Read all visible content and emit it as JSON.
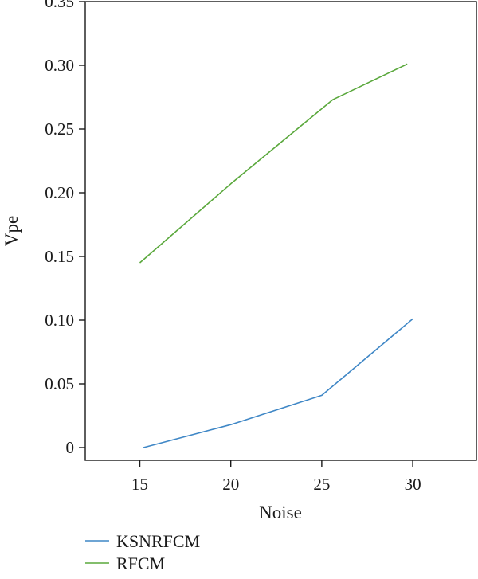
{
  "chart_data": {
    "type": "line",
    "xlabel": "Noise",
    "ylabel": "Vpe",
    "xlim": [
      12,
      33.5
    ],
    "ylim": [
      -0.01,
      0.35
    ],
    "xticks": [
      15,
      20,
      25,
      30
    ],
    "xtick_labels": [
      "15",
      "20",
      "25",
      "30"
    ],
    "yticks": [
      0,
      0.05,
      0.1,
      0.15,
      0.2,
      0.25,
      0.3,
      0.35
    ],
    "ytick_labels": [
      "0",
      "0.05",
      "0.10",
      "0.15",
      "0.20",
      "0.25",
      "0.30",
      "0.35"
    ],
    "grid": false,
    "legend_position": "bottom-left",
    "series": [
      {
        "name": "KSNRFCM",
        "color": "#3f87c6",
        "x": [
          15.2,
          20,
          25,
          30
        ],
        "y": [
          0.0,
          0.018,
          0.041,
          0.101
        ]
      },
      {
        "name": "RFCM",
        "color": "#5aa83c",
        "x": [
          15,
          20,
          25.6,
          29.7
        ],
        "y": [
          0.145,
          0.207,
          0.273,
          0.301
        ]
      }
    ]
  }
}
